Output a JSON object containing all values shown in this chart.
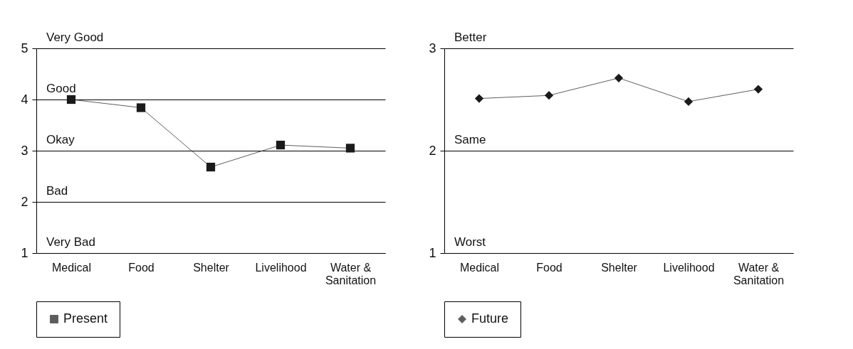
{
  "chart_data": [
    {
      "type": "line",
      "categories": [
        "Medical",
        "Food",
        "Shelter",
        "Livelihood",
        "Water & Sanitation"
      ],
      "series": [
        {
          "name": "Present",
          "color": "#1a1a1a",
          "values": [
            4.0,
            3.84,
            2.68,
            3.11,
            3.05
          ]
        }
      ],
      "ylim": [
        1,
        5
      ],
      "yticks": [
        1,
        2,
        3,
        4,
        5
      ],
      "grid": "y",
      "legend": "bottom",
      "marker": "square",
      "annotations": [
        "Very Good",
        "Good",
        "Okay",
        "Bad",
        "Very Bad"
      ]
    },
    {
      "type": "line",
      "categories": [
        "Medical",
        "Food",
        "Shelter",
        "Livelihood",
        "Water & Sanitation"
      ],
      "series": [
        {
          "name": "Future",
          "color": "#1a1a1a",
          "values": [
            2.51,
            2.54,
            2.71,
            2.48,
            2.6
          ]
        }
      ],
      "ylim": [
        1,
        3
      ],
      "yticks": [
        1,
        2,
        3
      ],
      "grid": "y",
      "legend": "bottom",
      "marker": "diamond",
      "annotations": [
        "Better",
        "Same",
        "Worst"
      ]
    }
  ]
}
